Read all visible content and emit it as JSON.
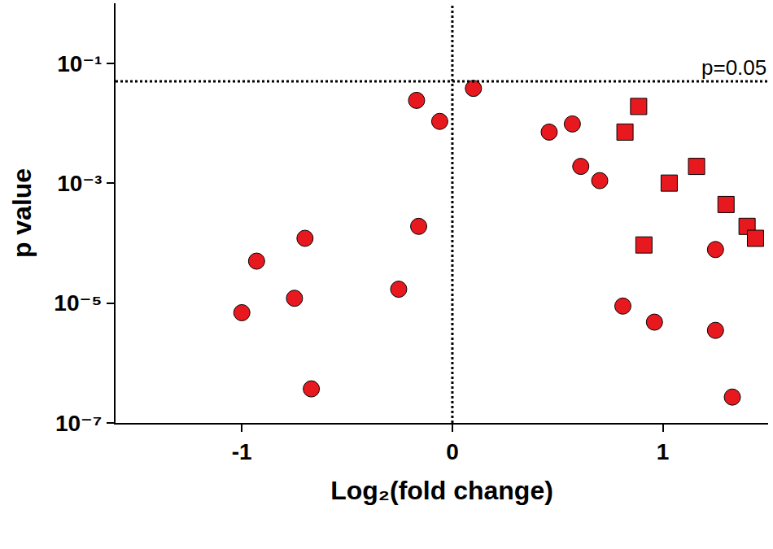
{
  "chart_data": {
    "type": "scatter",
    "x_label": "Log₂(fold change)",
    "y_label": "p value",
    "log": "y",
    "grid": false,
    "xlim": [
      -1.6,
      1.5
    ],
    "xticks": [
      -1,
      0,
      1
    ],
    "ylim": [
      1e-07,
      1
    ],
    "yticks": [
      {
        "value": 0.1,
        "label": "10⁻¹"
      },
      {
        "value": 0.001,
        "label": "10⁻³"
      },
      {
        "value": 1e-05,
        "label": "10⁻⁵"
      },
      {
        "value": 1e-07,
        "label": "10⁻⁷"
      }
    ],
    "hlines": [
      {
        "y": 0.05,
        "label": "p=0.05"
      }
    ],
    "vlines": [
      {
        "x": 0
      }
    ],
    "series": [
      {
        "color": "#e8181f",
        "marker": "circle",
        "x": [
          -1.0,
          -0.93,
          -0.75,
          -0.7,
          -0.67,
          -0.255,
          -0.16,
          -0.17,
          -0.06,
          0.1,
          0.46,
          0.57,
          0.61,
          0.7,
          0.81,
          0.96,
          1.25,
          1.25,
          1.33
        ],
        "values": [
          6.9e-06,
          5e-05,
          1.2e-05,
          0.00012,
          3.7e-07,
          1.7e-05,
          0.00019,
          0.024,
          0.0107,
          0.038,
          0.0071,
          0.0097,
          0.0019,
          0.0011,
          8.9e-06,
          4.8e-06,
          7.8e-05,
          3.5e-06,
          2.7e-07
        ]
      },
      {
        "color": "#e8181f",
        "marker": "square",
        "x": [
          0.82,
          0.885,
          1.03,
          1.16,
          1.3,
          1.4,
          1.44,
          0.91
        ],
        "values": [
          0.0071,
          0.019,
          0.001,
          0.0019,
          0.00044,
          0.00019,
          0.00012,
          9.3e-05
        ]
      }
    ]
  }
}
